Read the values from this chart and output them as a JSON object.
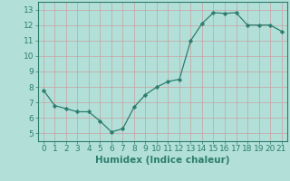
{
  "x": [
    0,
    1,
    2,
    3,
    4,
    5,
    6,
    7,
    8,
    9,
    10,
    11,
    12,
    13,
    14,
    15,
    16,
    17,
    18,
    19,
    20,
    21
  ],
  "y": [
    7.8,
    6.8,
    6.6,
    6.4,
    6.4,
    5.8,
    5.1,
    5.3,
    6.7,
    7.5,
    8.0,
    8.35,
    8.5,
    11.0,
    12.1,
    12.8,
    12.75,
    12.8,
    12.0,
    12.0,
    12.0,
    11.6
  ],
  "line_color": "#2d7d6e",
  "marker": "D",
  "marker_size": 2.2,
  "bg_color": "#b2e0d8",
  "grid_color": "#d9ede9",
  "xlabel": "Humidex (Indice chaleur)",
  "ylim": [
    4.5,
    13.5
  ],
  "xlim": [
    -0.5,
    21.5
  ],
  "yticks": [
    5,
    6,
    7,
    8,
    9,
    10,
    11,
    12,
    13
  ],
  "xticks": [
    0,
    1,
    2,
    3,
    4,
    5,
    6,
    7,
    8,
    9,
    10,
    11,
    12,
    13,
    14,
    15,
    16,
    17,
    18,
    19,
    20,
    21
  ],
  "tick_fontsize": 6.5,
  "xlabel_fontsize": 7.5,
  "xlabel_fontweight": "bold"
}
